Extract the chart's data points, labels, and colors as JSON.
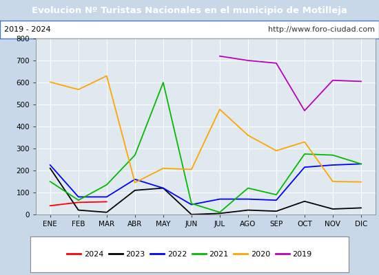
{
  "title": "Evolucion Nº Turistas Nacionales en el municipio de Motilleja",
  "subtitle_left": "2019 - 2024",
  "subtitle_right": "http://www.foro-ciudad.com",
  "title_bg_color": "#4C7BC0",
  "title_text_color": "#FFFFFF",
  "months": [
    "ENE",
    "FEB",
    "MAR",
    "ABR",
    "MAY",
    "JUN",
    "JUL",
    "AGO",
    "SEP",
    "OCT",
    "NOV",
    "DIC"
  ],
  "ylim": [
    0,
    800
  ],
  "yticks": [
    0,
    100,
    200,
    300,
    400,
    500,
    600,
    700,
    800
  ],
  "series": {
    "2024": {
      "color": "#FF0000",
      "data": [
        40,
        55,
        58,
        null,
        null,
        null,
        null,
        null,
        null,
        null,
        null,
        null
      ]
    },
    "2023": {
      "color": "#000000",
      "data": [
        210,
        20,
        10,
        110,
        120,
        0,
        5,
        20,
        15,
        60,
        25,
        30
      ]
    },
    "2022": {
      "color": "#0000FF",
      "data": [
        225,
        80,
        80,
        160,
        120,
        45,
        70,
        70,
        65,
        215,
        225,
        230
      ]
    },
    "2021": {
      "color": "#00BB00",
      "data": [
        150,
        65,
        135,
        270,
        600,
        50,
        10,
        120,
        90,
        275,
        270,
        230
      ]
    },
    "2020": {
      "color": "#FFA500",
      "data": [
        602,
        568,
        630,
        145,
        210,
        205,
        478,
        360,
        290,
        330,
        150,
        148
      ]
    },
    "2019": {
      "color": "#BB00BB",
      "data": [
        null,
        null,
        null,
        null,
        null,
        null,
        720,
        700,
        688,
        472,
        610,
        605
      ]
    }
  },
  "legend_order": [
    "2024",
    "2023",
    "2022",
    "2021",
    "2020",
    "2019"
  ],
  "fig_bg_color": "#C8D8E8",
  "plot_bg_color": "#E0E8F0",
  "grid_color": "#FFFFFF",
  "subtitle_bg_color": "#FFFFFF",
  "border_color": "#4C7BC0"
}
